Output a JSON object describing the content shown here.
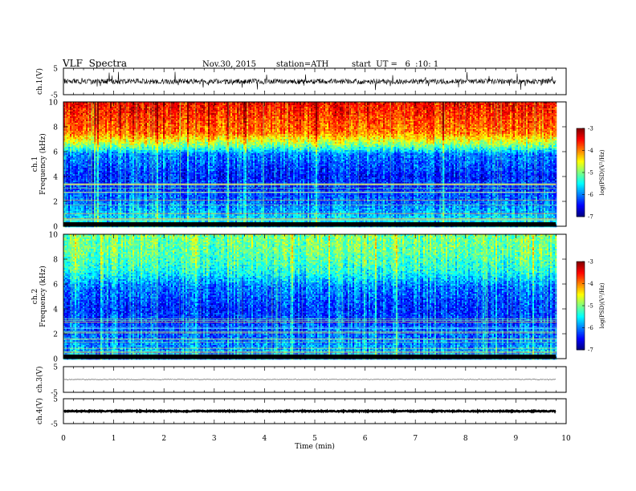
{
  "header": {
    "title": "VLF  Spectra",
    "date": "Nov.30, 2015",
    "station": "station=ATH",
    "start": "start  UT =   6  :10: 1"
  },
  "chart_data": [
    {
      "type": "line",
      "panel": "ch1-waveform",
      "ylabel": "ch.1(V)",
      "ylim": [
        -5,
        5
      ],
      "y_ticks": [
        "5",
        "-5"
      ],
      "x_range_min": [
        0,
        9.8
      ],
      "baseline_v": 0.0,
      "typical_amplitude_v": 1.0,
      "spike_amplitude_v": 3.0
    },
    {
      "type": "heatmap",
      "panel": "ch1-spectrogram",
      "ylabel": "ch.1\nFrequency  (kHz)",
      "ylim": [
        0,
        10
      ],
      "y_ticks": [
        "10",
        "8",
        "6",
        "4",
        "2",
        "0"
      ],
      "color_range": [
        -7,
        -3
      ],
      "colorbar_label": "log(PSD)(V²/Hz)",
      "colorbar_ticks": [
        "-3",
        "-4",
        "-5",
        "-6",
        "-7"
      ],
      "band_profile_logpsd": [
        {
          "freq_khz": 0.5,
          "value": -5.6
        },
        {
          "freq_khz": 2.0,
          "value": -6.1
        },
        {
          "freq_khz": 4.0,
          "value": -6.4
        },
        {
          "freq_khz": 5.8,
          "value": -6.0
        },
        {
          "freq_khz": 6.5,
          "value": -5.0
        },
        {
          "freq_khz": 7.5,
          "value": -4.0
        },
        {
          "freq_khz": 10.0,
          "value": -3.5
        }
      ]
    },
    {
      "type": "heatmap",
      "panel": "ch2-spectrogram",
      "ylabel": "ch.2\nFrequency  (kHz)",
      "ylim": [
        0,
        10
      ],
      "y_ticks": [
        "10",
        "8",
        "6",
        "4",
        "2",
        "0"
      ],
      "color_range": [
        -7,
        -3
      ],
      "colorbar_label": "log(PSD)(V²/Hz)",
      "colorbar_ticks": [
        "-3",
        "-4",
        "-5",
        "-6",
        "-7"
      ],
      "band_profile_logpsd": [
        {
          "freq_khz": 0.5,
          "value": -5.8
        },
        {
          "freq_khz": 2.0,
          "value": -6.1
        },
        {
          "freq_khz": 4.0,
          "value": -6.3
        },
        {
          "freq_khz": 5.8,
          "value": -6.0
        },
        {
          "freq_khz": 7.0,
          "value": -5.4
        },
        {
          "freq_khz": 8.5,
          "value": -5.1
        },
        {
          "freq_khz": 10.0,
          "value": -5.0
        }
      ]
    },
    {
      "type": "line",
      "panel": "ch3-waveform",
      "ylabel": "ch.3(V)",
      "ylim": [
        -5,
        5
      ],
      "y_ticks": [
        "5",
        "-5"
      ],
      "baseline_v": 0.0,
      "typical_amplitude_v": 0.1
    },
    {
      "type": "line",
      "panel": "ch4-waveform",
      "ylabel": "ch.4(V)",
      "ylim": [
        -5,
        5
      ],
      "y_ticks": [
        "5",
        "-5"
      ],
      "baseline_v": 0.0,
      "typical_amplitude_v": 0.2
    }
  ],
  "x_axis": {
    "label": "Time  (min)",
    "xlim": [
      0,
      10
    ],
    "ticks": [
      "0",
      "1",
      "2",
      "3",
      "4",
      "5",
      "6",
      "7",
      "8",
      "9",
      "10"
    ]
  }
}
